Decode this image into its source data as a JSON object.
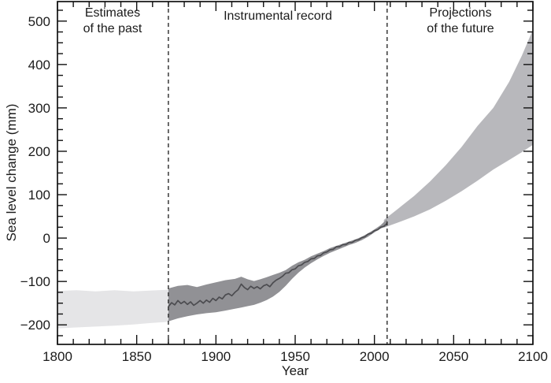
{
  "figure": {
    "background": "#ffffff",
    "text_color": "#1b1b1b",
    "axis_color": "#111111"
  },
  "chart_data": {
    "type": "area",
    "title": "",
    "xlabel": "Year",
    "ylabel": "Sea level change (mm)",
    "xlim": [
      1800,
      2100
    ],
    "ylim": [
      -245,
      545
    ],
    "grid": false,
    "x_major_ticks": [
      1800,
      1850,
      1900,
      1950,
      2000,
      2050,
      2100
    ],
    "x_tick_labels": [
      "1800",
      "1850",
      "1900",
      "1950",
      "2000",
      "2050",
      "2100"
    ],
    "x_minor_step": 10,
    "y_major_ticks": [
      -200,
      -100,
      0,
      100,
      200,
      300,
      400,
      500
    ],
    "y_tick_labels": [
      "−200",
      "−100",
      "0",
      "100",
      "200",
      "300",
      "400",
      "500"
    ],
    "y_minor_step": 25,
    "boundary_lines_x": [
      1870,
      2008
    ],
    "boundary_line_color": "#2a2a2a",
    "regions": [
      {
        "name": "estimates-of-the-past",
        "label": "Estimates\nof the past",
        "x_start": 1800,
        "x_end": 1870
      },
      {
        "name": "instrumental-record",
        "label": "Instrumental record",
        "x_start": 1870,
        "x_end": 2008
      },
      {
        "name": "projections-of-the-future",
        "label": "Projections\nof the future",
        "x_start": 2008,
        "x_end": 2100
      }
    ],
    "series": [
      {
        "name": "past-estimates-band",
        "type": "band",
        "fill": "#e5e5e7",
        "x": [
          1800,
          1812,
          1824,
          1836,
          1848,
          1858,
          1870
        ],
        "upper": [
          -122,
          -120,
          -123,
          -120,
          -123,
          -121,
          -119
        ],
        "lower": [
          -208,
          -206,
          -204,
          -202,
          -199,
          -196,
          -193
        ]
      },
      {
        "name": "projections-band",
        "type": "band",
        "fill": "#b8b8bc",
        "x": [
          2006,
          2015,
          2025,
          2035,
          2045,
          2055,
          2065,
          2075,
          2085,
          2093,
          2100
        ],
        "upper": [
          42,
          68,
          97,
          130,
          168,
          210,
          258,
          300,
          360,
          420,
          480
        ],
        "lower": [
          24,
          36,
          50,
          66,
          86,
          108,
          132,
          158,
          180,
          198,
          215
        ]
      },
      {
        "name": "instrumental-band",
        "type": "band",
        "fill": "#919195",
        "x": [
          1870,
          1876,
          1882,
          1888,
          1894,
          1900,
          1906,
          1912,
          1916,
          1920,
          1924,
          1928,
          1932,
          1936,
          1940,
          1944,
          1948,
          1952,
          1956,
          1960,
          1964,
          1968,
          1972,
          1976,
          1980,
          1984,
          1988,
          1992,
          1996,
          2000,
          2004,
          2008
        ],
        "upper": [
          -116,
          -110,
          -108,
          -113,
          -107,
          -102,
          -97,
          -94,
          -89,
          -95,
          -99,
          -95,
          -90,
          -85,
          -80,
          -74,
          -64,
          -56,
          -50,
          -42,
          -36,
          -30,
          -23,
          -18,
          -13,
          -8,
          -3,
          3,
          11,
          20,
          30,
          44
        ],
        "lower": [
          -192,
          -185,
          -180,
          -176,
          -173,
          -171,
          -167,
          -163,
          -160,
          -157,
          -154,
          -149,
          -143,
          -135,
          -124,
          -110,
          -94,
          -80,
          -68,
          -58,
          -49,
          -41,
          -34,
          -28,
          -22,
          -16,
          -11,
          -5,
          3,
          13,
          22,
          28
        ]
      },
      {
        "name": "instrumental-line",
        "type": "line",
        "stroke": "#4c4c50",
        "x": [
          1870,
          1872,
          1874,
          1876,
          1878,
          1880,
          1882,
          1884,
          1886,
          1888,
          1890,
          1892,
          1894,
          1896,
          1898,
          1900,
          1902,
          1904,
          1906,
          1908,
          1910,
          1912,
          1914,
          1916,
          1918,
          1920,
          1922,
          1924,
          1926,
          1928,
          1930,
          1932,
          1934,
          1936,
          1938,
          1940,
          1942,
          1944,
          1946,
          1948,
          1950,
          1952,
          1954,
          1956,
          1958,
          1960,
          1962,
          1964,
          1966,
          1968,
          1970,
          1972,
          1974,
          1976,
          1978,
          1980,
          1982,
          1984,
          1986,
          1988,
          1990,
          1992,
          1994,
          1996,
          1998,
          2000,
          2002,
          2004,
          2006,
          2008
        ],
        "y": [
          -158,
          -149,
          -154,
          -144,
          -151,
          -146,
          -153,
          -147,
          -155,
          -150,
          -144,
          -150,
          -143,
          -148,
          -139,
          -144,
          -136,
          -140,
          -131,
          -128,
          -133,
          -125,
          -119,
          -106,
          -114,
          -119,
          -111,
          -116,
          -112,
          -117,
          -110,
          -107,
          -112,
          -103,
          -97,
          -93,
          -88,
          -81,
          -80,
          -73,
          -71,
          -64,
          -62,
          -56,
          -54,
          -48,
          -47,
          -41,
          -40,
          -34,
          -32,
          -27,
          -26,
          -20,
          -20,
          -15,
          -15,
          -10,
          -10,
          -5,
          -4,
          1,
          3,
          9,
          11,
          17,
          19,
          25,
          27,
          34
        ]
      }
    ]
  }
}
